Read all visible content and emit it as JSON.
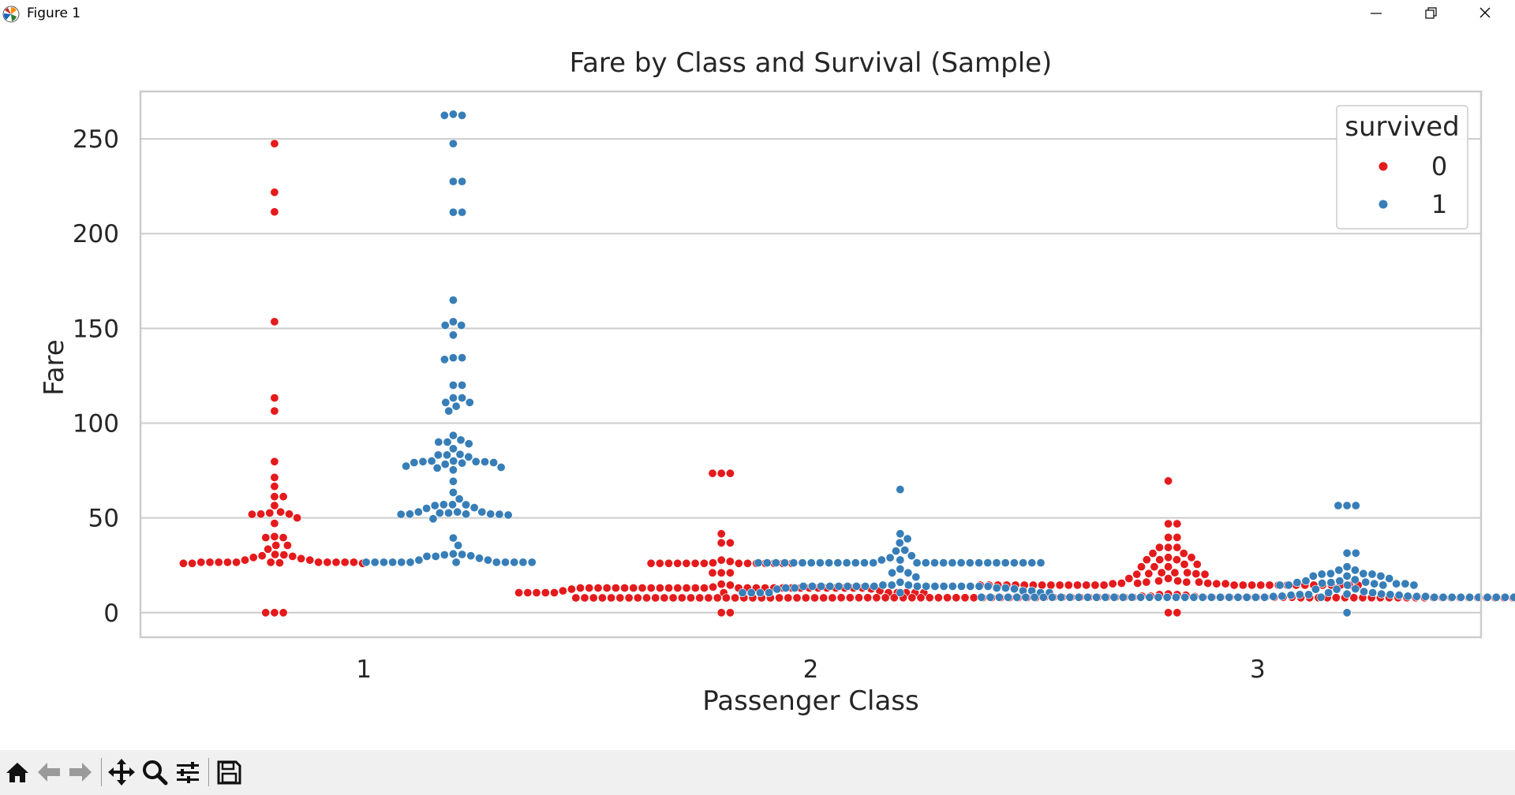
{
  "window": {
    "title": "Figure 1"
  },
  "toolbar": {
    "buttons": [
      {
        "icon": "home-icon"
      },
      {
        "icon": "back-arrow-icon"
      },
      {
        "icon": "forward-arrow-icon"
      },
      {
        "icon": "pan-icon"
      },
      {
        "icon": "zoom-icon"
      },
      {
        "icon": "configure-subplots-icon"
      },
      {
        "icon": "save-icon"
      }
    ]
  },
  "chart_data": {
    "type": "scatter",
    "subtype": "swarm",
    "title": "Fare by Class and Survival (Sample)",
    "xlabel": "Passenger Class",
    "ylabel": "Fare",
    "categories": [
      "1",
      "2",
      "3"
    ],
    "ylim": [
      -13,
      275
    ],
    "yticks": [
      0,
      50,
      100,
      150,
      200,
      250
    ],
    "grid": true,
    "legend": {
      "title": "survived",
      "placement": "top-right",
      "entries": [
        "0",
        "1"
      ]
    },
    "colors": {
      "0": "#e41a1c",
      "1": "#377eb8"
    },
    "series": [
      {
        "name": "0",
        "groups": {
          "1": [
            247.5,
            221.8,
            211.5,
            153.5,
            113.3,
            106.4,
            79.7,
            71.3,
            66.6,
            61.2,
            61.2,
            56.5,
            53.1,
            52.6,
            52.0,
            52.0,
            51.9,
            50.0,
            47.1,
            40.1,
            39.6,
            39.6,
            35.5,
            35.5,
            33.5,
            30.7,
            30.5,
            30.0,
            29.7,
            29.1,
            28.5,
            27.7,
            27.7,
            26.6,
            26.6,
            26.6,
            26.6,
            26.6,
            26.6,
            26.6,
            26.6,
            26.6,
            26.6,
            26.6,
            26.3,
            26.0,
            26.0,
            26.0,
            0.0,
            0.0,
            0.0
          ],
          "2": [
            73.5,
            73.5,
            73.5,
            41.6,
            36.8,
            36.8,
            27.7,
            27.0,
            26.3,
            26.0,
            26.0,
            26.0,
            26.0,
            26.0,
            26.0,
            26.0,
            26.0,
            26.0,
            26.0,
            26.0,
            26.0,
            26.0,
            26.0,
            21.0,
            21.0,
            21.0,
            15.0,
            14.5,
            13.5,
            13.0,
            13.0,
            13.0,
            13.0,
            13.0,
            13.0,
            13.0,
            13.0,
            13.0,
            13.0,
            13.0,
            13.0,
            13.0,
            13.0,
            13.0,
            13.0,
            13.0,
            13.0,
            13.0,
            13.0,
            13.0,
            13.0,
            13.0,
            13.0,
            13.0,
            13.0,
            13.0,
            13.0,
            13.0,
            13.0,
            12.5,
            12.4,
            11.5,
            11.5,
            10.5,
            10.5,
            10.5,
            10.5,
            10.5,
            10.5,
            10.5,
            10.5,
            10.5,
            10.5,
            10.5,
            0.0,
            0.0
          ],
          "3": [
            69.5,
            46.9,
            46.9,
            39.7,
            39.7,
            34.4,
            34.4,
            34.4,
            31.3,
            31.3,
            29.1,
            29.1,
            27.9,
            27.9,
            27.9,
            25.5,
            25.5,
            24.2,
            24.2,
            24.2,
            21.1,
            21.1,
            21.1,
            20.6,
            20.5,
            20.2,
            20.2,
            18.0,
            18.0,
            16.7,
            16.7,
            16.1,
            16.1,
            16.1,
            15.5,
            15.5,
            15.5,
            15.2,
            15.2,
            15.2,
            14.5,
            14.5,
            14.5,
            14.5,
            14.5,
            14.5,
            14.5,
            14.5,
            14.5,
            14.5,
            14.5,
            14.5,
            14.5,
            14.5,
            14.5,
            14.5,
            14.5,
            14.5,
            14.5,
            14.5,
            14.5,
            14.5,
            14.5,
            14.5,
            14.5,
            14.5,
            14.5,
            14.5,
            14.5,
            14.5,
            9.8,
            9.5,
            9.5,
            9.2,
            8.7,
            8.7,
            8.5,
            8.1,
            8.1,
            8.1,
            8.1,
            8.1,
            8.1,
            8.1,
            8.1,
            8.1,
            8.1,
            8.1,
            8.1,
            8.1,
            8.1,
            8.1,
            8.1,
            8.1,
            8.1,
            8.1,
            8.1,
            8.1,
            8.1,
            7.9,
            7.9,
            7.9,
            7.9,
            7.9,
            7.9,
            7.9,
            7.9,
            7.9,
            7.9,
            7.9,
            7.9,
            7.9,
            7.9,
            7.9,
            7.9,
            7.9,
            7.9,
            7.9,
            7.9,
            7.9,
            7.9,
            7.9,
            7.9,
            7.9,
            7.9,
            7.9,
            7.9,
            7.9,
            7.9,
            7.9,
            7.9,
            7.9,
            7.9,
            7.9,
            7.9,
            7.9,
            7.9,
            7.9,
            7.9,
            7.9,
            7.9,
            7.9,
            7.9,
            7.9,
            7.8,
            7.8,
            7.8,
            7.8,
            7.8,
            7.8,
            7.8,
            7.8,
            7.8,
            7.8,
            7.8,
            7.8,
            7.8,
            7.8,
            7.8,
            7.8,
            7.8,
            7.8,
            7.8,
            7.8,
            7.8,
            7.8,
            7.8,
            7.8,
            7.8,
            7.8,
            7.8,
            7.8,
            7.8,
            7.8,
            7.8,
            7.8,
            7.8,
            7.8,
            7.8,
            7.8,
            7.8,
            7.8,
            7.8,
            7.8,
            7.8,
            7.8,
            7.8,
            7.8,
            7.8,
            7.8,
            7.8,
            7.8,
            7.8,
            7.8,
            7.8,
            7.8,
            7.8,
            7.8,
            7.8,
            7.8,
            7.8,
            7.8,
            7.8,
            7.8,
            0.0,
            0.0
          ]
        }
      },
      {
        "name": "1",
        "groups": {
          "1": [
            263.0,
            262.4,
            262.4,
            247.5,
            227.5,
            227.5,
            211.3,
            211.3,
            164.9,
            153.5,
            151.6,
            151.6,
            146.5,
            134.5,
            134.5,
            133.6,
            120.0,
            120.0,
            113.3,
            113.3,
            110.9,
            110.9,
            108.9,
            106.4,
            93.5,
            91.1,
            90.0,
            90.0,
            89.1,
            86.5,
            83.5,
            83.2,
            83.2,
            82.2,
            80.0,
            80.0,
            79.7,
            79.7,
            79.6,
            79.2,
            79.2,
            78.9,
            78.3,
            77.3,
            76.7,
            76.3,
            75.3,
            69.3,
            63.4,
            60.0,
            57.0,
            57.0,
            56.9,
            56.5,
            55.4,
            55.0,
            53.1,
            53.1,
            53.1,
            52.6,
            52.6,
            52.0,
            52.0,
            52.0,
            51.9,
            51.9,
            51.5,
            49.5,
            39.4,
            35.5,
            31.0,
            30.7,
            30.5,
            30.0,
            29.7,
            29.7,
            28.7,
            27.7,
            27.7,
            26.6,
            26.6,
            26.6,
            26.6,
            26.6,
            26.6,
            26.6,
            26.6,
            26.6,
            26.6,
            26.6,
            26.6
          ],
          "2": [
            65.0,
            41.6,
            39.0,
            36.8,
            33.0,
            32.5,
            30.0,
            29.0,
            27.8,
            27.8,
            26.3,
            26.3,
            26.3,
            26.3,
            26.3,
            26.3,
            26.3,
            26.3,
            26.3,
            26.3,
            26.3,
            26.3,
            26.3,
            26.3,
            26.3,
            26.3,
            26.3,
            26.3,
            26.3,
            26.3,
            26.3,
            26.3,
            26.3,
            26.3,
            26.3,
            26.3,
            26.3,
            26.3,
            26.3,
            23.0,
            21.0,
            21.0,
            18.8,
            16.0,
            14.5,
            14.5,
            14.5,
            13.9,
            13.9,
            13.9,
            13.9,
            13.9,
            13.9,
            13.9,
            13.9,
            13.9,
            13.9,
            13.9,
            13.9,
            13.9,
            13.9,
            13.9,
            13.9,
            13.9,
            13.9,
            13.0,
            13.0,
            13.0,
            13.0,
            12.5,
            12.4,
            11.5,
            11.5,
            10.5,
            10.5,
            10.5,
            10.5,
            10.5,
            10.5,
            10.5
          ],
          "3": [
            56.5,
            56.5,
            56.5,
            31.4,
            31.4,
            24.2,
            22.4,
            22.4,
            20.6,
            20.6,
            20.3,
            20.3,
            19.3,
            19.3,
            19.3,
            18.0,
            17.4,
            16.7,
            16.7,
            16.1,
            15.9,
            15.9,
            15.5,
            15.2,
            15.2,
            15.2,
            14.5,
            14.5,
            14.5,
            14.5,
            14.5,
            12.5,
            12.3,
            12.3,
            11.1,
            10.5,
            10.5,
            9.8,
            9.8,
            9.5,
            9.5,
            9.5,
            9.2,
            9.2,
            8.7,
            8.7,
            8.5,
            8.5,
            8.5,
            8.1,
            8.1,
            8.1,
            8.1,
            8.1,
            8.1,
            8.1,
            8.1,
            8.1,
            8.1,
            8.1,
            8.1,
            8.1,
            8.1,
            8.1,
            8.1,
            8.1,
            8.1,
            8.1,
            8.1,
            8.1,
            8.1,
            8.1,
            8.1,
            8.1,
            8.1,
            8.1,
            8.1,
            8.1,
            8.1,
            8.1,
            8.1,
            8.1,
            8.1,
            8.1,
            8.1,
            8.1,
            8.1,
            8.1,
            8.1,
            8.1,
            8.1,
            8.1,
            8.1,
            8.1,
            8.1,
            8.1,
            8.1,
            8.1,
            8.1,
            8.1,
            8.1,
            8.1,
            8.1,
            8.1,
            8.1,
            8.1,
            8.1,
            8.1,
            8.1,
            8.1,
            8.1,
            8.1,
            8.1,
            8.1,
            8.1,
            8.1,
            0.0
          ]
        }
      }
    ]
  }
}
